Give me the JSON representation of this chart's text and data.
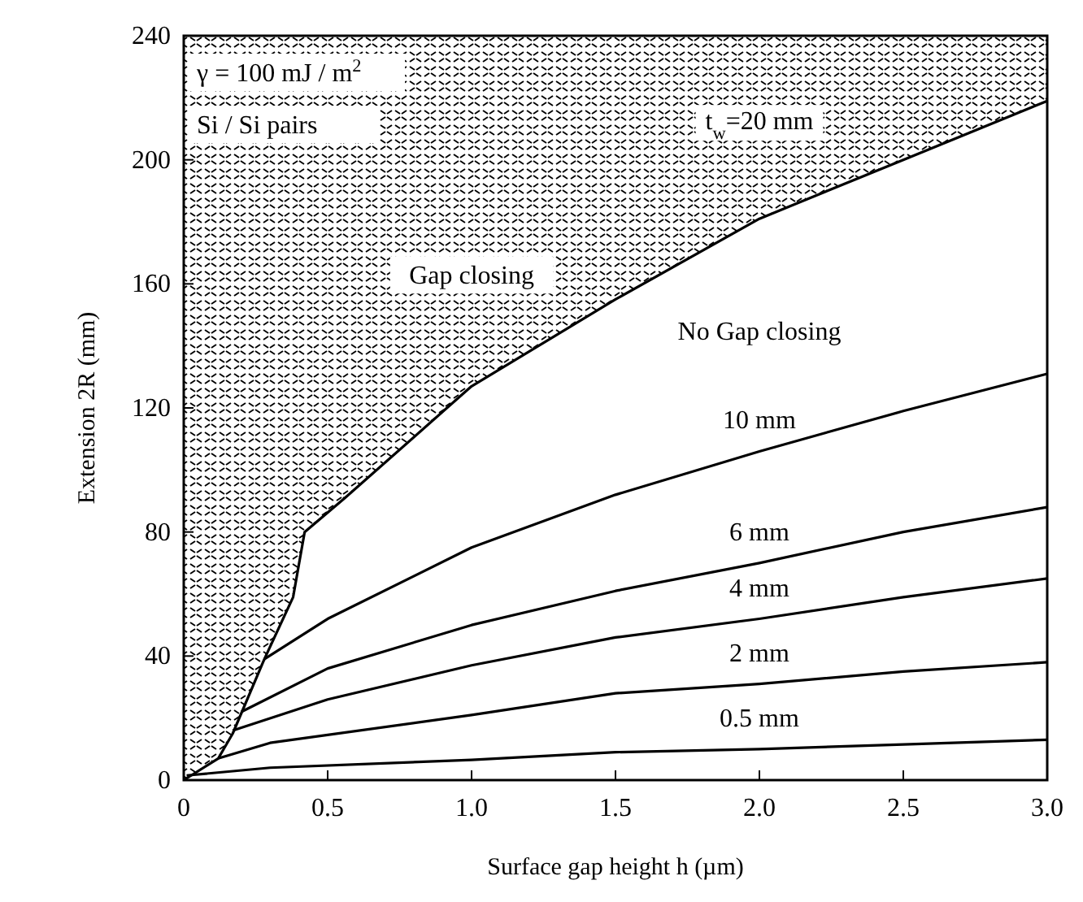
{
  "chart_data": {
    "type": "line",
    "xlabel": "Surface gap height h (µm)",
    "ylabel": "Extension 2R (mm)",
    "xlim": [
      0,
      3.0
    ],
    "ylim": [
      0,
      240
    ],
    "xticks": [
      {
        "value": 0,
        "label": "0"
      },
      {
        "value": 0.5,
        "label": "0.5"
      },
      {
        "value": 1,
        "label": "1.0"
      },
      {
        "value": 1.5,
        "label": "1.5"
      },
      {
        "value": 2,
        "label": "2.0"
      },
      {
        "value": 2.5,
        "label": "2.5"
      },
      {
        "value": 3,
        "label": "3.0"
      }
    ],
    "yticks": [
      0,
      40,
      80,
      120,
      160,
      200,
      240
    ],
    "grid": false,
    "marker": "none",
    "line_style": "solid",
    "series": [
      {
        "name": "t$_{w}$=20 mm",
        "color": "#000000",
        "x": [
          0,
          0.12,
          0.17,
          0.28,
          0.38,
          0.42,
          0.56,
          1.0,
          1.5,
          2.0,
          2.5,
          3.0
        ],
        "values": [
          0,
          7,
          15,
          39,
          59,
          80,
          91,
          127,
          155,
          181,
          200,
          219
        ],
        "lower": [
          0,
          7,
          15,
          39,
          59,
          80,
          91,
          127,
          155,
          181,
          200,
          219
        ],
        "upper": [
          240,
          240,
          240,
          240,
          240,
          240,
          240,
          240,
          240,
          240,
          240,
          240
        ]
      },
      {
        "name": "10 mm",
        "color": "#000000",
        "x": [
          0.28,
          0.5,
          1.0,
          1.5,
          2.0,
          2.5,
          3.0
        ],
        "values": [
          39,
          52,
          75,
          92,
          106,
          119,
          131
        ]
      },
      {
        "name": "6 mm",
        "color": "#000000",
        "x": [
          0.2,
          0.5,
          1.0,
          1.5,
          2.0,
          2.5,
          3.0
        ],
        "values": [
          22,
          36,
          50,
          61,
          70,
          80,
          88
        ]
      },
      {
        "name": "4 mm",
        "color": "#000000",
        "x": [
          0.17,
          0.5,
          1.0,
          1.5,
          2.0,
          2.5,
          3.0
        ],
        "values": [
          16,
          26,
          37,
          46,
          52,
          59,
          65
        ]
      },
      {
        "name": "2 mm",
        "color": "#000000",
        "x": [
          0.12,
          0.3,
          1.0,
          1.5,
          2.0,
          2.5,
          3.0
        ],
        "values": [
          7,
          12,
          21,
          28,
          31,
          35,
          38
        ]
      },
      {
        "name": "0.5 mm",
        "color": "#000000",
        "x": [
          0.01,
          0.3,
          1.0,
          1.5,
          2.0,
          2.5,
          3.0
        ],
        "values": [
          1.5,
          4,
          6.5,
          9,
          10,
          11.5,
          13
        ]
      }
    ],
    "annotations": [
      "γ = 100 mJ / m$^{2}$",
      "Si / Si pairs",
      "Gap closing",
      "No Gap closing"
    ]
  }
}
